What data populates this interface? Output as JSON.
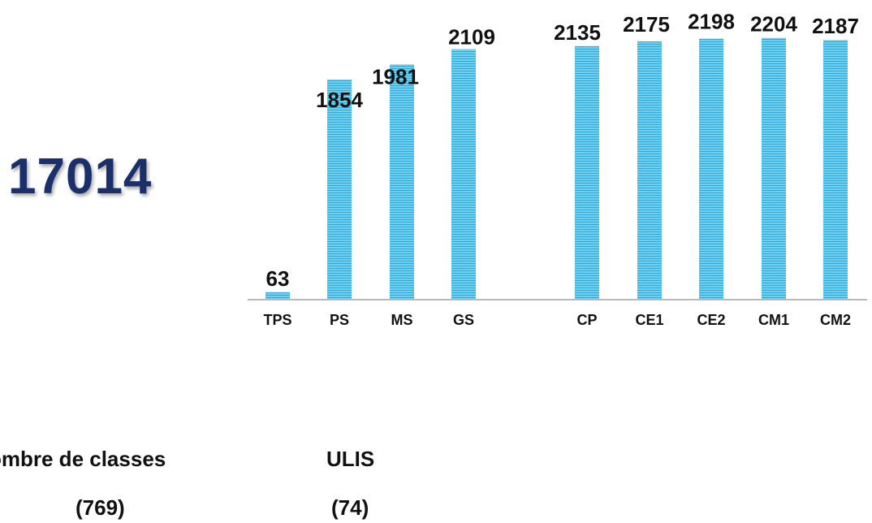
{
  "total": "17014",
  "chart_data": {
    "type": "bar",
    "categories": [
      "TPS",
      "PS",
      "MS",
      "GS",
      "CP",
      "CE1",
      "CE2",
      "CM1",
      "CM2"
    ],
    "values": [
      63,
      1854,
      1981,
      2109,
      2135,
      2175,
      2198,
      2204,
      2187
    ],
    "title": "",
    "xlabel": "",
    "ylabel": "",
    "ylim": [
      0,
      2250
    ],
    "grid": false,
    "bar_color": "#4fc3e8"
  },
  "info": {
    "classes_label": "ombre de classes",
    "classes_value": "(769)",
    "ulis_label": "ULIS",
    "ulis_value": "(74)"
  }
}
